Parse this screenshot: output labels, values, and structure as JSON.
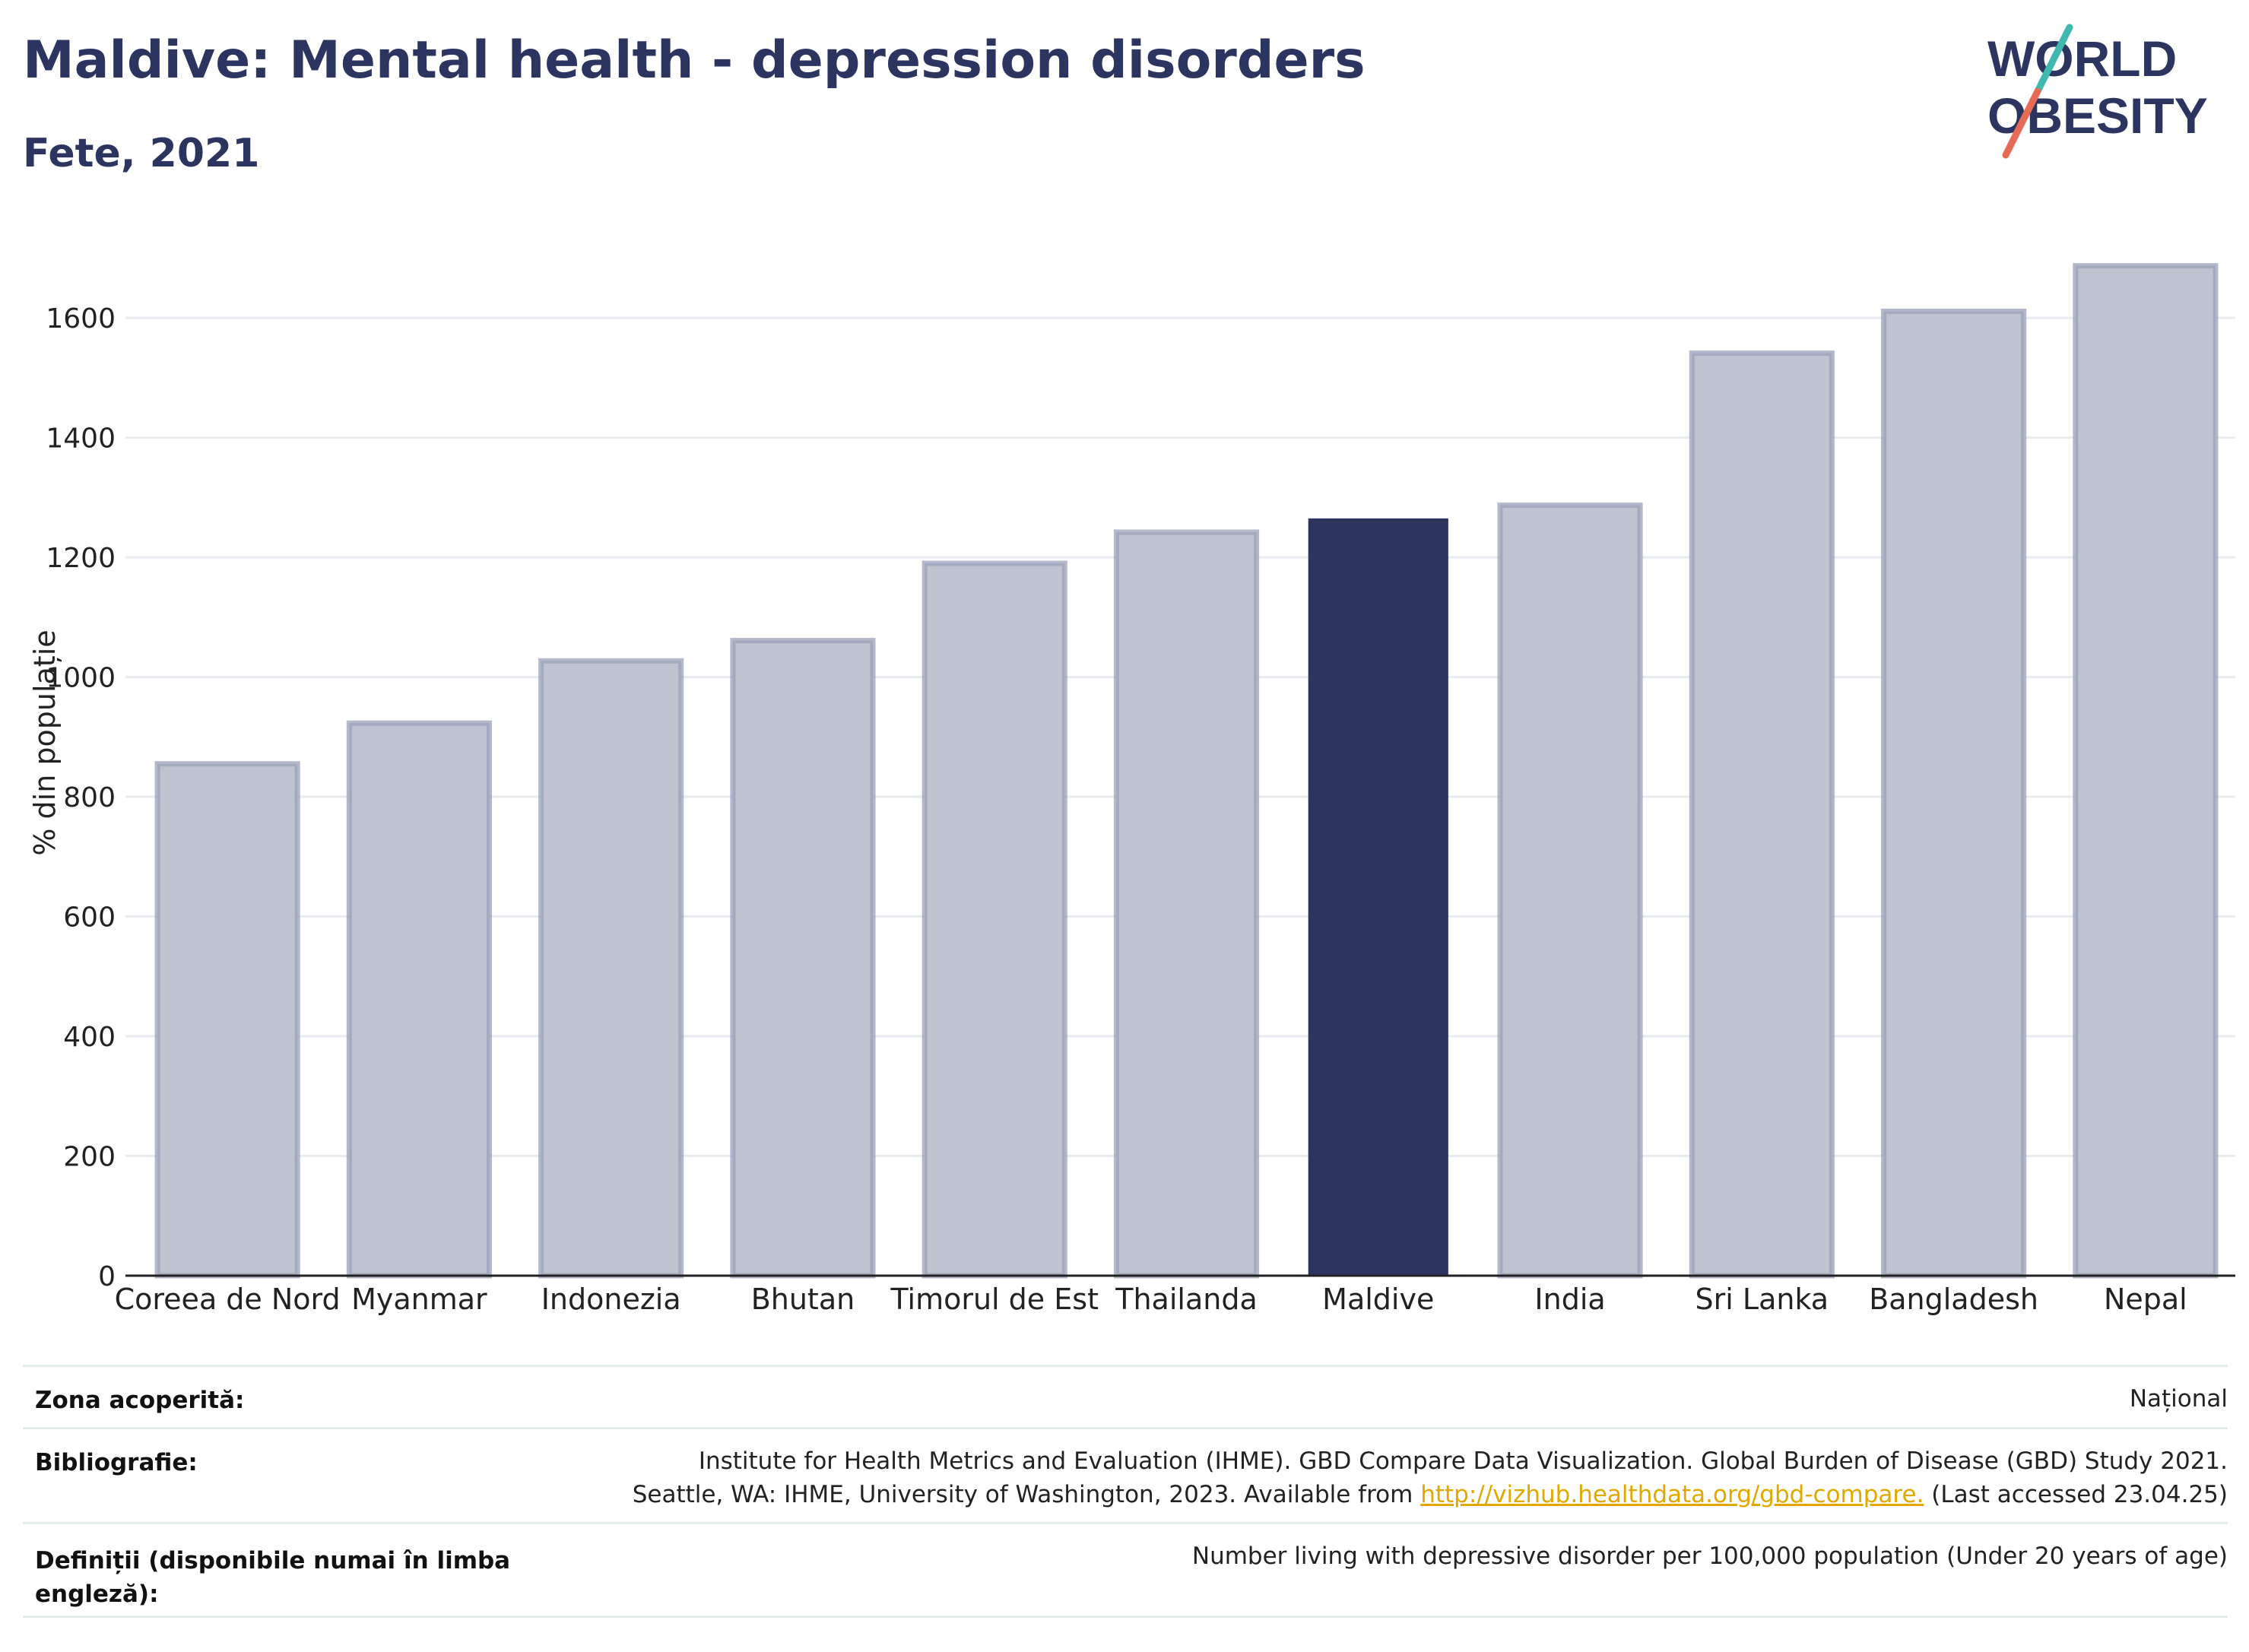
{
  "header": {
    "title": "Maldive: Mental health - depression disorders",
    "subtitle": "Fete, 2021"
  },
  "logo": {
    "line1": "WORLD",
    "line2": "OBESITY",
    "colors": {
      "text": "#2b3560",
      "slash_top": "#3fb8b0",
      "slash_bottom": "#e66a55"
    }
  },
  "chart_data": {
    "type": "bar",
    "categories": [
      "Coreea de Nord",
      "Myanmar",
      "Indonezia",
      "Bhutan",
      "Timorul de Est",
      "Thailanda",
      "Maldive",
      "India",
      "Sri Lanka",
      "Bangladesh",
      "Nepal"
    ],
    "values": [
      855,
      923,
      1027,
      1061,
      1190,
      1242,
      1265,
      1287,
      1541,
      1611,
      1687
    ],
    "highlight": "Maldive",
    "ylabel": "% din populație",
    "xlabel": "",
    "ylim": [
      0,
      1750
    ],
    "yticks": [
      0,
      200,
      400,
      600,
      800,
      1000,
      1200,
      1400,
      1600
    ],
    "grid": true,
    "colors": {
      "bar": "#bfc3d0",
      "bar_edge": "#9aa0b8",
      "highlight": "#2b3560",
      "grid": "#e8ebef",
      "axis": "#222222"
    }
  },
  "info": {
    "coverage_label": "Zona acoperită:",
    "coverage_value": "Național",
    "bibliography_label": "Bibliografie:",
    "bibliography_line1": "Institute for Health Metrics and Evaluation (IHME). GBD Compare Data Visualization. Global Burden of Disease (GBD) Study 2021.",
    "bibliography_line2_pre": "Seattle, WA: IHME, University of Washington, 2023. Available from ",
    "bibliography_link": "http://vizhub.healthdata.org/gbd-compare.",
    "bibliography_line2_post": " (Last accessed 23.04.25)",
    "definitions_label_1": "Definiții (disponibile numai în limba",
    "definitions_label_2": "engleză):",
    "definitions_value": "Number living with depressive disorder per 100,000 population (Under 20 years of age)"
  }
}
